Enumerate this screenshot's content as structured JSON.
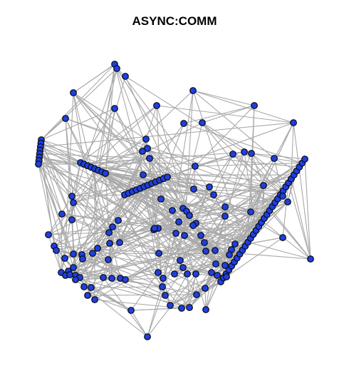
{
  "title": "ASYNC:COMM",
  "colors": {
    "edge": "#a9a9a9",
    "node_fill": "#1f3fe0",
    "node_stroke": "#0a0a0a"
  }
}
